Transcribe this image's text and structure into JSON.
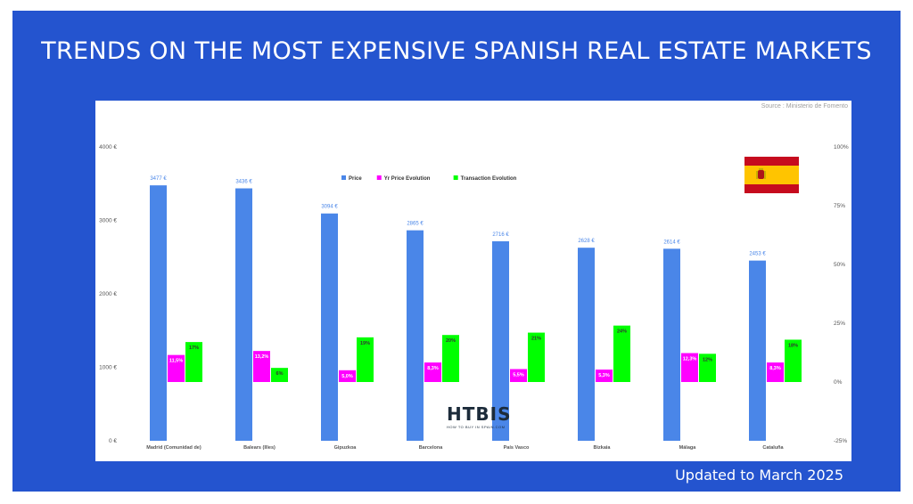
{
  "title": "TRENDS ON THE MOST EXPENSIVE SPANISH REAL ESTATE MARKETS",
  "footer": "Updated to March 2025",
  "source": "Source : Ministerio de Fomento",
  "logo": {
    "name": "HTBIS",
    "tagline": "HOW TO BUY IN SPAIN.COM"
  },
  "colors": {
    "background": "#2454cf",
    "price": "#4a86e8",
    "price_evolution": "#ff00ff",
    "transaction_evolution": "#00ff00"
  },
  "chart_data": {
    "type": "bar",
    "categories": [
      "Madrid (Comunidad de)",
      "Balears (Illes)",
      "Gipuzkoa",
      "Barcelona",
      "País Vasco",
      "Bizkaia",
      "Málaga",
      "Cataluña"
    ],
    "series": [
      {
        "name": "Price",
        "axis": "left",
        "color": "#4a86e8",
        "values": [
          3477,
          3436,
          3094,
          2865,
          2716,
          2628,
          2614,
          2453
        ],
        "labels": [
          "3477 €",
          "3436 €",
          "3094 €",
          "2865 €",
          "2716 €",
          "2628 €",
          "2614 €",
          "2453 €"
        ]
      },
      {
        "name": "Yr Price Evolution",
        "axis": "right",
        "color": "#ff00ff",
        "values": [
          11.5,
          13.2,
          5.0,
          8.3,
          5.5,
          5.3,
          12.3,
          8.3
        ],
        "labels": [
          "11,5%",
          "13,2%",
          "5,0%",
          "8,3%",
          "5,5%",
          "5,3%",
          "12,3%",
          "8,3%"
        ]
      },
      {
        "name": "Transaction Evolution",
        "axis": "right",
        "color": "#00ff00",
        "values": [
          17,
          6,
          19,
          20,
          21,
          24,
          12,
          18
        ],
        "labels": [
          "17%",
          "6%",
          "19%",
          "20%",
          "21%",
          "24%",
          "12%",
          "18%"
        ]
      }
    ],
    "y_left": {
      "range": [
        0,
        4000
      ],
      "ticks": [
        0,
        1000,
        2000,
        3000,
        4000
      ],
      "tick_labels": [
        "0 €",
        "1000 €",
        "2000 €",
        "3000 €",
        "4000 €"
      ]
    },
    "y_right": {
      "range": [
        -25,
        100
      ],
      "ticks": [
        -25,
        0,
        25,
        50,
        75,
        100
      ],
      "tick_labels": [
        "-25%",
        "0%",
        "25%",
        "50%",
        "75%",
        "100%"
      ]
    },
    "legend_position": "top-center",
    "grid": false
  }
}
